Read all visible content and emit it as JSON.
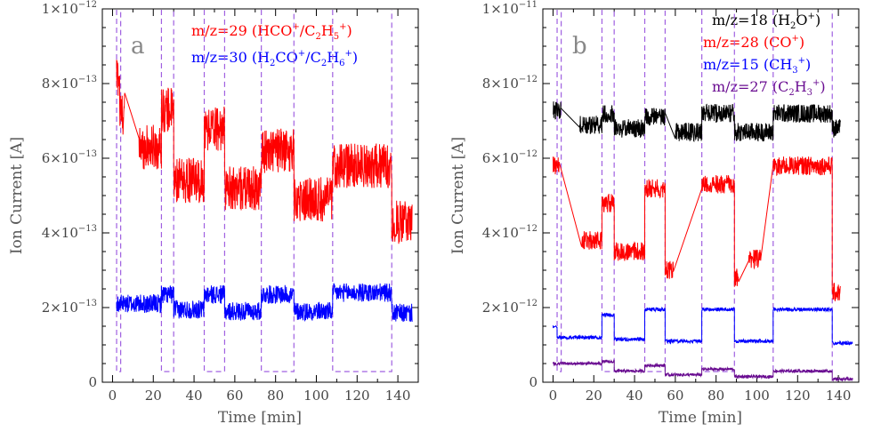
{
  "chart_data": [
    {
      "panel": "a",
      "type": "line",
      "xlabel": "Time [min]",
      "ylabel": "Ion Current [A]",
      "xlim": [
        -5,
        150
      ],
      "ylim": [
        0,
        1e-12
      ],
      "xticks": [
        0,
        20,
        40,
        60,
        80,
        100,
        120,
        140
      ],
      "yticks": [
        {
          "value": 0,
          "mant": "0",
          "exp": ""
        },
        {
          "value": 2e-13,
          "mant": "2×10",
          "exp": "−13"
        },
        {
          "value": 4e-13,
          "mant": "4×10",
          "exp": "−13"
        },
        {
          "value": 6e-13,
          "mant": "6×10",
          "exp": "−13"
        },
        {
          "value": 8e-13,
          "mant": "8×10",
          "exp": "−13"
        },
        {
          "value": 1e-12,
          "mant": "1×10",
          "exp": "−12"
        }
      ],
      "series": [
        {
          "name": "m/z=29 (HCO⁺/C₂H₅⁺)",
          "color": "#ff0000",
          "noise": 6e-14,
          "segments": [
            {
              "x0": 2,
              "x1": 3.5,
              "y": 8.2e-13
            },
            {
              "x0": 3.5,
              "x1": 6,
              "y": 7.2e-13
            },
            {
              "x0": 13,
              "x1": 24,
              "y": 6.3e-13
            },
            {
              "x0": 24,
              "x1": 30,
              "y": 7.3e-13
            },
            {
              "x0": 30,
              "x1": 45,
              "y": 5.4e-13
            },
            {
              "x0": 45,
              "x1": 55,
              "y": 6.8e-13
            },
            {
              "x0": 55,
              "x1": 73,
              "y": 5.2e-13
            },
            {
              "x0": 73,
              "x1": 89,
              "y": 6.2e-13
            },
            {
              "x0": 89,
              "x1": 108,
              "y": 4.9e-13
            },
            {
              "x0": 108,
              "x1": 137,
              "y": 5.8e-13
            },
            {
              "x0": 137,
              "x1": 147,
              "y": 4.3e-13
            }
          ]
        },
        {
          "name": "m/z=30 (H₂CO⁺/C₂H₆⁺)",
          "color": "#0000ff",
          "noise": 2.5e-14,
          "segments": [
            {
              "x0": 2,
              "x1": 24,
              "y": 2.1e-13
            },
            {
              "x0": 24,
              "x1": 30,
              "y": 2.35e-13
            },
            {
              "x0": 30,
              "x1": 45,
              "y": 1.95e-13
            },
            {
              "x0": 45,
              "x1": 55,
              "y": 2.35e-13
            },
            {
              "x0": 55,
              "x1": 73,
              "y": 1.9e-13
            },
            {
              "x0": 73,
              "x1": 89,
              "y": 2.35e-13
            },
            {
              "x0": 89,
              "x1": 108,
              "y": 1.9e-13
            },
            {
              "x0": 108,
              "x1": 137,
              "y": 2.4e-13
            },
            {
              "x0": 137,
              "x1": 147,
              "y": 1.85e-13
            }
          ]
        }
      ],
      "windows": [
        [
          2,
          4
        ],
        [
          24,
          30
        ],
        [
          45,
          55
        ],
        [
          73,
          89
        ],
        [
          108,
          137
        ]
      ]
    },
    {
      "panel": "b",
      "type": "line",
      "xlabel": "Time [min]",
      "ylabel": "Ion Current [A]",
      "xlim": [
        -5,
        150
      ],
      "ylim": [
        0,
        1e-11
      ],
      "xticks": [
        0,
        20,
        40,
        60,
        80,
        100,
        120,
        140
      ],
      "yticks": [
        {
          "value": 0,
          "mant": "0",
          "exp": ""
        },
        {
          "value": 2e-12,
          "mant": "2×10",
          "exp": "−12"
        },
        {
          "value": 4e-12,
          "mant": "4×10",
          "exp": "−12"
        },
        {
          "value": 6e-12,
          "mant": "6×10",
          "exp": "−12"
        },
        {
          "value": 8e-12,
          "mant": "8×10",
          "exp": "−12"
        },
        {
          "value": 1e-11,
          "mant": "1×10",
          "exp": "−11"
        }
      ],
      "series": [
        {
          "name": "m/z=18 (H₂O⁺)",
          "color": "#000000",
          "noise": 2.5e-13,
          "segments": [
            {
              "x0": 0,
              "x1": 4,
              "y": 7.3e-12
            },
            {
              "x0": 13,
              "x1": 24,
              "y": 6.9e-12
            },
            {
              "x0": 24,
              "x1": 30,
              "y": 7.2e-12
            },
            {
              "x0": 30,
              "x1": 45,
              "y": 6.8e-12
            },
            {
              "x0": 45,
              "x1": 55,
              "y": 7.1e-12
            },
            {
              "x0": 60,
              "x1": 73,
              "y": 6.7e-12
            },
            {
              "x0": 73,
              "x1": 89,
              "y": 7.2e-12
            },
            {
              "x0": 89,
              "x1": 108,
              "y": 6.7e-12
            },
            {
              "x0": 108,
              "x1": 137,
              "y": 7.2e-12
            },
            {
              "x0": 137,
              "x1": 141,
              "y": 6.8e-12
            }
          ]
        },
        {
          "name": "m/z=28 (CO⁺)",
          "color": "#ff0000",
          "noise": 2.5e-13,
          "segments": [
            {
              "x0": 0,
              "x1": 3,
              "y": 5.8e-12
            },
            {
              "x0": 14,
              "x1": 24,
              "y": 3.8e-12
            },
            {
              "x0": 24,
              "x1": 30,
              "y": 4.8e-12
            },
            {
              "x0": 30,
              "x1": 45,
              "y": 3.5e-12
            },
            {
              "x0": 45,
              "x1": 55,
              "y": 5.2e-12
            },
            {
              "x0": 55,
              "x1": 59,
              "y": 3e-12
            },
            {
              "x0": 73,
              "x1": 89,
              "y": 5.3e-12
            },
            {
              "x0": 89,
              "x1": 91,
              "y": 2.8e-12
            },
            {
              "x0": 96,
              "x1": 102,
              "y": 3.3e-12
            },
            {
              "x0": 108,
              "x1": 137,
              "y": 5.8e-12
            },
            {
              "x0": 137,
              "x1": 141,
              "y": 2.4e-12
            }
          ]
        },
        {
          "name": "m/z=15 (CH₃⁺)",
          "color": "#0000ff",
          "noise": 5e-14,
          "segments": [
            {
              "x0": 0,
              "x1": 2,
              "y": 1.5e-12
            },
            {
              "x0": 2,
              "x1": 24,
              "y": 1.2e-12
            },
            {
              "x0": 24,
              "x1": 30,
              "y": 1.8e-12
            },
            {
              "x0": 30,
              "x1": 45,
              "y": 1.15e-12
            },
            {
              "x0": 45,
              "x1": 55,
              "y": 1.95e-12
            },
            {
              "x0": 55,
              "x1": 73,
              "y": 1.1e-12
            },
            {
              "x0": 73,
              "x1": 89,
              "y": 1.95e-12
            },
            {
              "x0": 89,
              "x1": 108,
              "y": 1.1e-12
            },
            {
              "x0": 108,
              "x1": 137,
              "y": 1.95e-12
            },
            {
              "x0": 137,
              "x1": 147,
              "y": 1.05e-12
            }
          ]
        },
        {
          "name": "m/z=27 (C₂H₃⁺)",
          "color": "#6a0d91",
          "noise": 4e-14,
          "segments": [
            {
              "x0": 0,
              "x1": 24,
              "y": 5e-13
            },
            {
              "x0": 24,
              "x1": 30,
              "y": 5.5e-13
            },
            {
              "x0": 30,
              "x1": 45,
              "y": 3e-13
            },
            {
              "x0": 45,
              "x1": 55,
              "y": 4.5e-13
            },
            {
              "x0": 55,
              "x1": 73,
              "y": 2e-13
            },
            {
              "x0": 73,
              "x1": 89,
              "y": 3.5e-13
            },
            {
              "x0": 89,
              "x1": 108,
              "y": 1.5e-13
            },
            {
              "x0": 108,
              "x1": 137,
              "y": 3e-13
            },
            {
              "x0": 137,
              "x1": 147,
              "y": 8e-14
            }
          ]
        }
      ],
      "windows": [
        [
          2,
          4
        ],
        [
          24,
          30
        ],
        [
          45,
          55
        ],
        [
          73,
          89
        ],
        [
          108,
          137
        ]
      ]
    }
  ]
}
